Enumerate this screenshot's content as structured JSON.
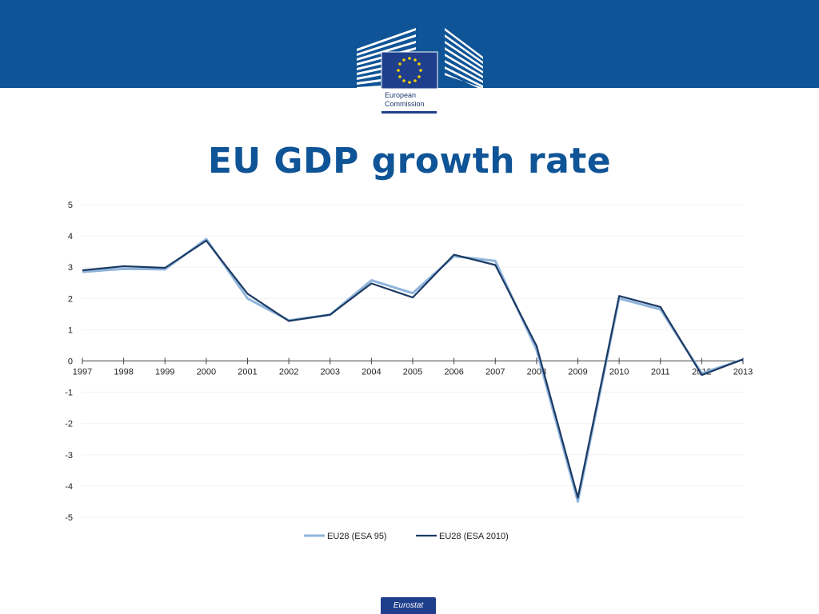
{
  "header": {
    "logo_line1": "European",
    "logo_line2": "Commission"
  },
  "footer": {
    "badge": "Eurostat"
  },
  "colors": {
    "band": "#0f5496",
    "title": "#0f5496",
    "series_esa95": "#8fb4dc",
    "series_esa2010": "#1b3a63"
  },
  "chart_data": {
    "type": "line",
    "title": "EU GDP growth rate",
    "xlabel": "",
    "ylabel": "",
    "ylim": [
      -5,
      5
    ],
    "yticks": [
      5,
      4,
      3,
      2,
      1,
      0,
      -1,
      -2,
      -3,
      -4,
      -5
    ],
    "grid": true,
    "legend_position": "bottom",
    "categories": [
      "1997",
      "1998",
      "1999",
      "2000",
      "2001",
      "2002",
      "2003",
      "2004",
      "2005",
      "2006",
      "2007",
      "2008",
      "2009",
      "2010",
      "2011",
      "2012",
      "2013"
    ],
    "series": [
      {
        "name": "EU28 (ESA 95)",
        "color": "#8fb4dc",
        "values": [
          2.85,
          2.95,
          2.93,
          3.9,
          2.0,
          1.3,
          1.48,
          2.58,
          2.17,
          3.35,
          3.2,
          0.35,
          -4.5,
          2.0,
          1.65,
          -0.4,
          0.05
        ]
      },
      {
        "name": "EU28 (ESA 2010)",
        "color": "#1b3a63",
        "values": [
          2.9,
          3.03,
          2.98,
          3.85,
          2.15,
          1.28,
          1.48,
          2.48,
          2.03,
          3.4,
          3.07,
          0.48,
          -4.37,
          2.08,
          1.73,
          -0.45,
          0.05
        ]
      }
    ]
  }
}
